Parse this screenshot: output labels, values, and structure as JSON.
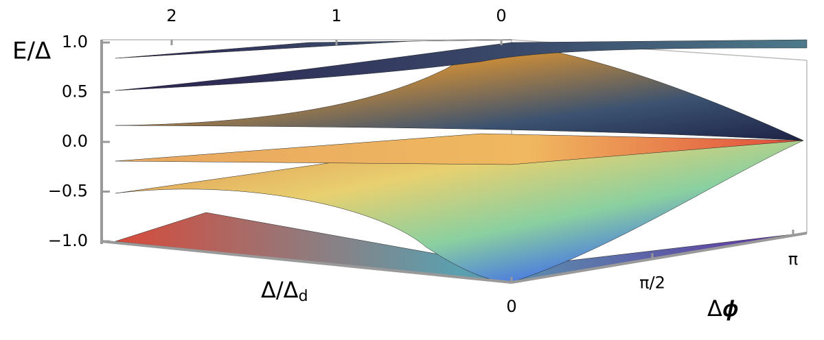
{
  "chart_data": {
    "type": "surface3d",
    "z_label": "E/Δ",
    "x_label": "Δ/Δ",
    "x_label_sub": "d",
    "y_label": "Δ𝝓",
    "zlim": [
      -1,
      1
    ],
    "zticks": [
      {
        "value": 1,
        "label": "1.0"
      },
      {
        "value": 0.5,
        "label": "0.5"
      },
      {
        "value": 0,
        "label": "0.0"
      },
      {
        "value": -0.5,
        "label": "−0.5"
      },
      {
        "value": -1,
        "label": "−1.0"
      }
    ],
    "xlim": [
      0,
      2.4
    ],
    "xticks": [
      2,
      1,
      0
    ],
    "ylim": [
      0,
      3.14159
    ],
    "yticks": [
      0,
      {
        "value": 1.5708,
        "label": "π/2"
      },
      {
        "value": 3.14159,
        "label": "π"
      }
    ]
  }
}
